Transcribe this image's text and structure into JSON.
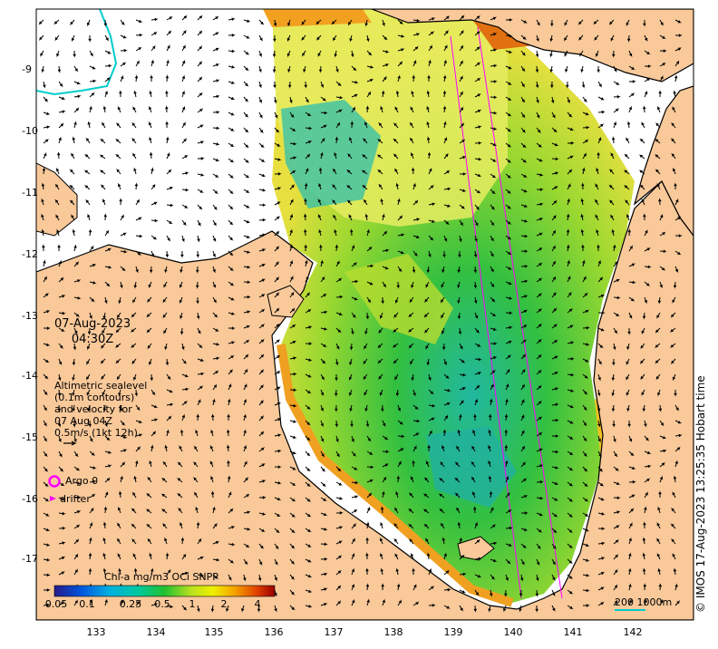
{
  "map": {
    "timestamp_date": "07-Aug-2023",
    "timestamp_time": "04:30Z",
    "legend_lines": [
      "Altimetric sealevel",
      "(0.1m contours)",
      "and velocity for",
      "07 Aug 04Z",
      "0.5m/s (1kt 12h)"
    ],
    "argo_label": "Argo 0",
    "drifter_label": "drifter",
    "credit": "© IMOS 17-Aug-2023 13:25:35 Hobart time",
    "colorbar_title": "Chl-a mg/m3 OCi SNPP",
    "colorbar_ticks": [
      "0.05",
      "0.1",
      "0.25",
      "0.5",
      "1",
      "2",
      "4"
    ],
    "scale_label": "200  1000m",
    "lat_ticks": [
      "9",
      "10",
      "11",
      "12",
      "13",
      "14",
      "15",
      "16",
      "17"
    ],
    "lon_ticks": [
      "133",
      "134",
      "135",
      "136",
      "137",
      "138",
      "139",
      "140",
      "141",
      "142"
    ],
    "colors": {
      "land": "#f9c99a",
      "ocean_bg": "#ffffff",
      "coast": "#000000",
      "argo": "#ff00ff",
      "drifter": "#ff00ff",
      "isobath": "#00cccc"
    }
  }
}
